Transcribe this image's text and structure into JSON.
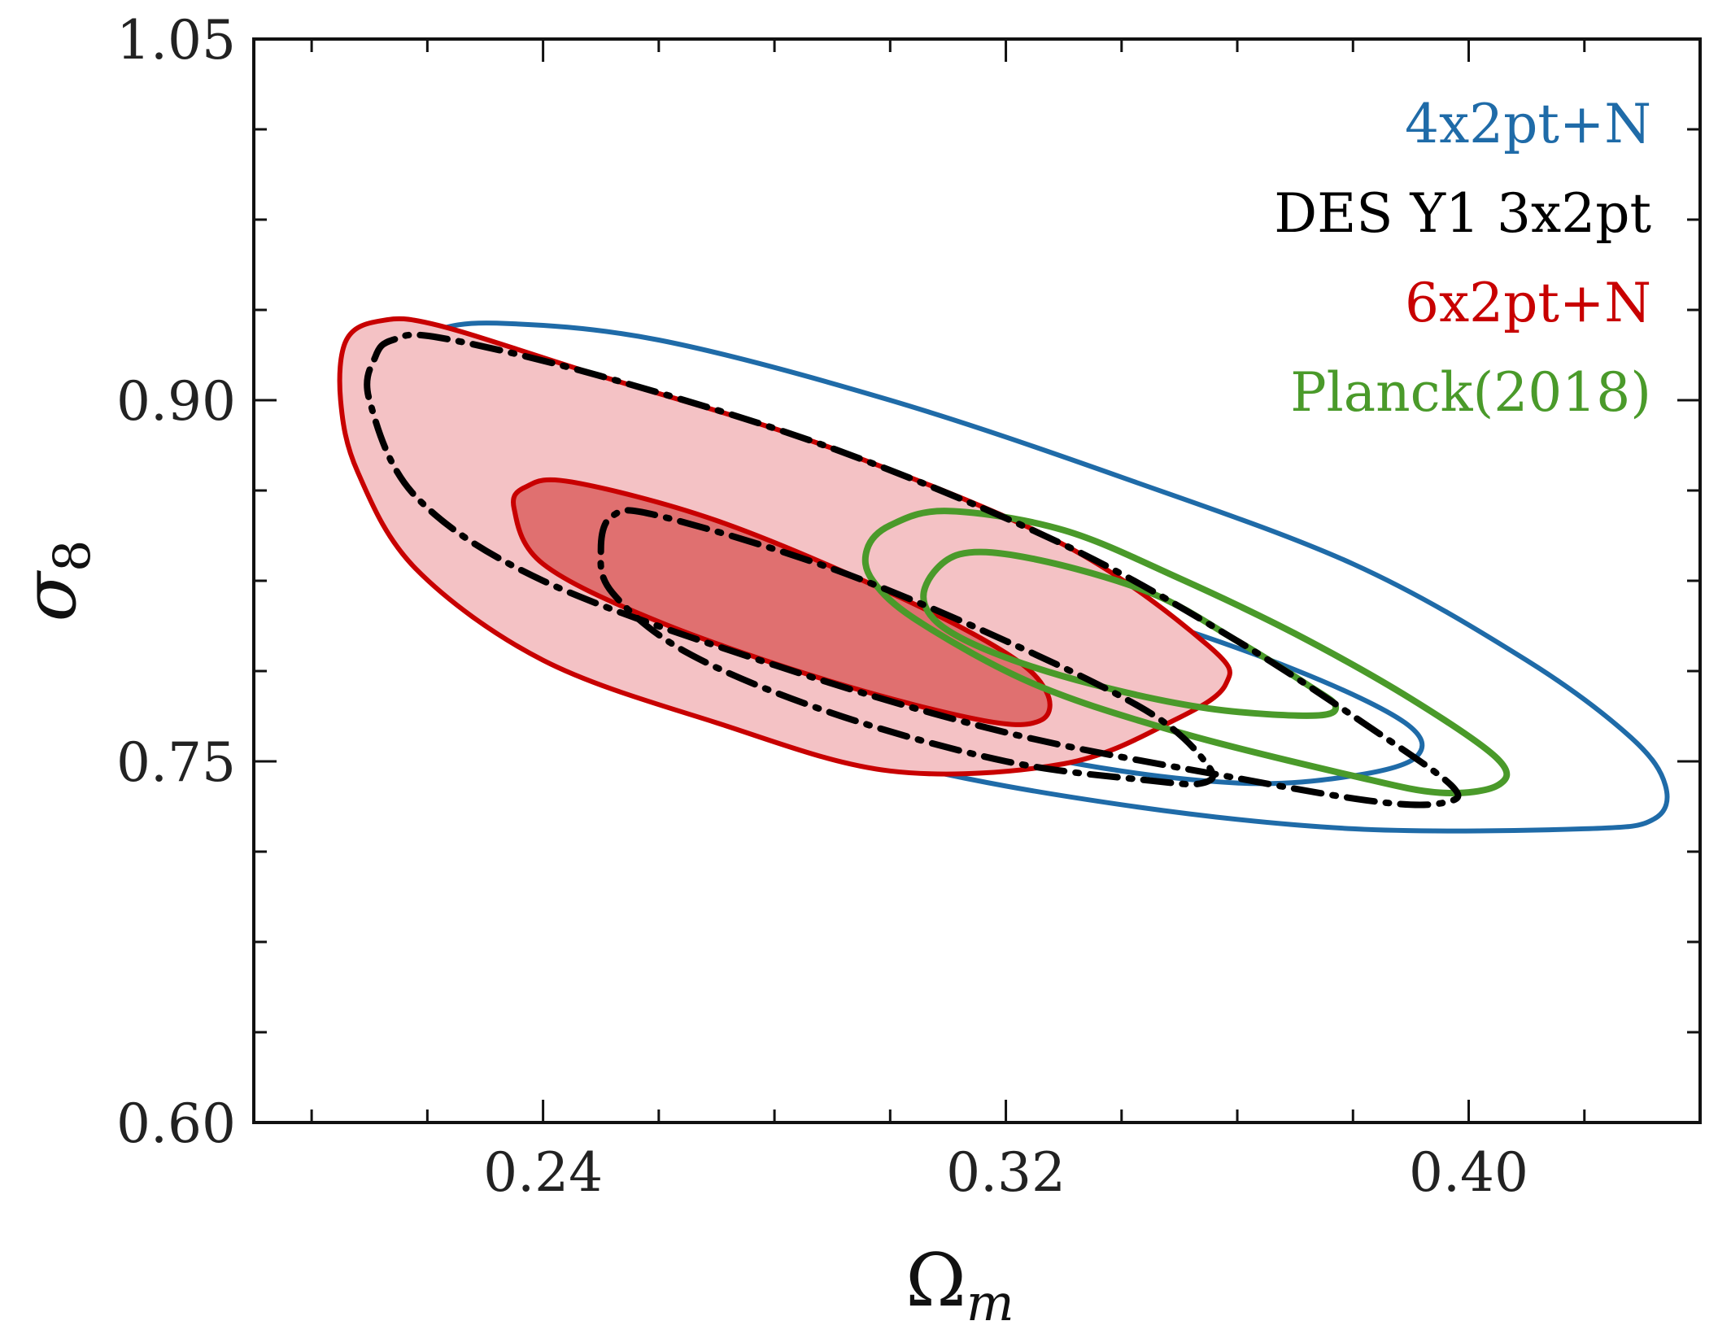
{
  "chart_data": {
    "type": "contour",
    "xlabel": "Ω",
    "xlabel_sub": "m",
    "ylabel": "σ",
    "ylabel_sub": "8",
    "xlim": [
      0.19,
      0.44
    ],
    "ylim": [
      0.6,
      1.05
    ],
    "xticks": [
      0.24,
      0.32,
      0.4
    ],
    "xtick_labels": [
      "0.24",
      "0.32",
      "0.40"
    ],
    "yticks": [
      0.6,
      0.75,
      0.9,
      1.05
    ],
    "ytick_labels": [
      "0.60",
      "0.75",
      "0.90",
      "1.05"
    ],
    "x_minor_step": 0.02,
    "y_minor_step": 0.0375,
    "legend_position": "top-right",
    "series": [
      {
        "name": "4x2pt+N",
        "color": "#1f6ba8",
        "linestyle": "solid",
        "filled": false,
        "contours": [
          [
            [
              0.212,
              0.918
            ],
            [
              0.22,
              0.928
            ],
            [
              0.232,
              0.932
            ],
            [
              0.26,
              0.925
            ],
            [
              0.3,
              0.9
            ],
            [
              0.34,
              0.868
            ],
            [
              0.38,
              0.832
            ],
            [
              0.41,
              0.792
            ],
            [
              0.428,
              0.76
            ],
            [
              0.434,
              0.74
            ],
            [
              0.432,
              0.726
            ],
            [
              0.42,
              0.722
            ],
            [
              0.38,
              0.722
            ],
            [
              0.34,
              0.732
            ],
            [
              0.3,
              0.75
            ],
            [
              0.26,
              0.78
            ],
            [
              0.23,
              0.816
            ],
            [
              0.214,
              0.86
            ],
            [
              0.21,
              0.9
            ]
          ],
          [
            [
              0.24,
              0.852
            ],
            [
              0.245,
              0.858
            ],
            [
              0.26,
              0.858
            ],
            [
              0.3,
              0.84
            ],
            [
              0.34,
              0.813
            ],
            [
              0.37,
              0.788
            ],
            [
              0.389,
              0.766
            ],
            [
              0.391,
              0.752
            ],
            [
              0.38,
              0.744
            ],
            [
              0.36,
              0.741
            ],
            [
              0.33,
              0.75
            ],
            [
              0.29,
              0.772
            ],
            [
              0.26,
              0.8
            ],
            [
              0.243,
              0.83
            ]
          ]
        ]
      },
      {
        "name": "DES Y1 3x2pt",
        "color": "#000000",
        "linestyle": "dashdot",
        "filled": false,
        "contours": [
          [
            [
              0.211,
              0.918
            ],
            [
              0.214,
              0.925
            ],
            [
              0.222,
              0.926
            ],
            [
              0.25,
              0.91
            ],
            [
              0.29,
              0.88
            ],
            [
              0.33,
              0.84
            ],
            [
              0.36,
              0.8
            ],
            [
              0.383,
              0.764
            ],
            [
              0.397,
              0.74
            ],
            [
              0.396,
              0.733
            ],
            [
              0.385,
              0.733
            ],
            [
              0.36,
              0.743
            ],
            [
              0.32,
              0.762
            ],
            [
              0.28,
              0.79
            ],
            [
              0.24,
              0.825
            ],
            [
              0.218,
              0.86
            ],
            [
              0.21,
              0.9
            ]
          ],
          [
            [
              0.25,
              0.838
            ],
            [
              0.252,
              0.852
            ],
            [
              0.26,
              0.852
            ],
            [
              0.29,
              0.83
            ],
            [
              0.32,
              0.8
            ],
            [
              0.345,
              0.77
            ],
            [
              0.355,
              0.748
            ],
            [
              0.354,
              0.741
            ],
            [
              0.345,
              0.742
            ],
            [
              0.32,
              0.75
            ],
            [
              0.29,
              0.77
            ],
            [
              0.265,
              0.795
            ],
            [
              0.252,
              0.82
            ]
          ]
        ]
      },
      {
        "name": "6x2pt+N",
        "color": "#c80000",
        "linestyle": "solid",
        "filled": true,
        "fill_colors": [
          "#f4c2c5",
          "#e07070"
        ],
        "contours": [
          [
            [
              0.206,
              0.925
            ],
            [
              0.212,
              0.933
            ],
            [
              0.222,
              0.931
            ],
            [
              0.25,
              0.91
            ],
            [
              0.29,
              0.88
            ],
            [
              0.33,
              0.84
            ],
            [
              0.355,
              0.798
            ],
            [
              0.358,
              0.782
            ],
            [
              0.349,
              0.767
            ],
            [
              0.33,
              0.749
            ],
            [
              0.3,
              0.746
            ],
            [
              0.27,
              0.766
            ],
            [
              0.24,
              0.792
            ],
            [
              0.218,
              0.83
            ],
            [
              0.208,
              0.87
            ],
            [
              0.205,
              0.9
            ]
          ],
          [
            [
              0.235,
              0.855
            ],
            [
              0.237,
              0.864
            ],
            [
              0.245,
              0.866
            ],
            [
              0.27,
              0.85
            ],
            [
              0.3,
              0.82
            ],
            [
              0.32,
              0.795
            ],
            [
              0.327,
              0.779
            ],
            [
              0.326,
              0.767
            ],
            [
              0.316,
              0.767
            ],
            [
              0.29,
              0.783
            ],
            [
              0.26,
              0.808
            ],
            [
              0.24,
              0.832
            ]
          ]
        ]
      },
      {
        "name": "Planck(2018)",
        "color": "#4a9a2a",
        "linestyle": "solid",
        "filled": false,
        "contours": [
          [
            [
              0.296,
              0.838
            ],
            [
              0.3,
              0.848
            ],
            [
              0.31,
              0.854
            ],
            [
              0.33,
              0.846
            ],
            [
              0.35,
              0.826
            ],
            [
              0.37,
              0.803
            ],
            [
              0.39,
              0.776
            ],
            [
              0.405,
              0.751
            ],
            [
              0.405,
              0.74
            ],
            [
              0.395,
              0.737
            ],
            [
              0.38,
              0.744
            ],
            [
              0.35,
              0.762
            ],
            [
              0.325,
              0.782
            ],
            [
              0.305,
              0.808
            ],
            [
              0.297,
              0.825
            ]
          ],
          [
            [
              0.306,
              0.822
            ],
            [
              0.312,
              0.836
            ],
            [
              0.325,
              0.834
            ],
            [
              0.345,
              0.82
            ],
            [
              0.36,
              0.8
            ],
            [
              0.372,
              0.782
            ],
            [
              0.377,
              0.773
            ],
            [
              0.373,
              0.769
            ],
            [
              0.355,
              0.772
            ],
            [
              0.335,
              0.782
            ],
            [
              0.318,
              0.795
            ],
            [
              0.308,
              0.808
            ]
          ]
        ]
      }
    ]
  }
}
